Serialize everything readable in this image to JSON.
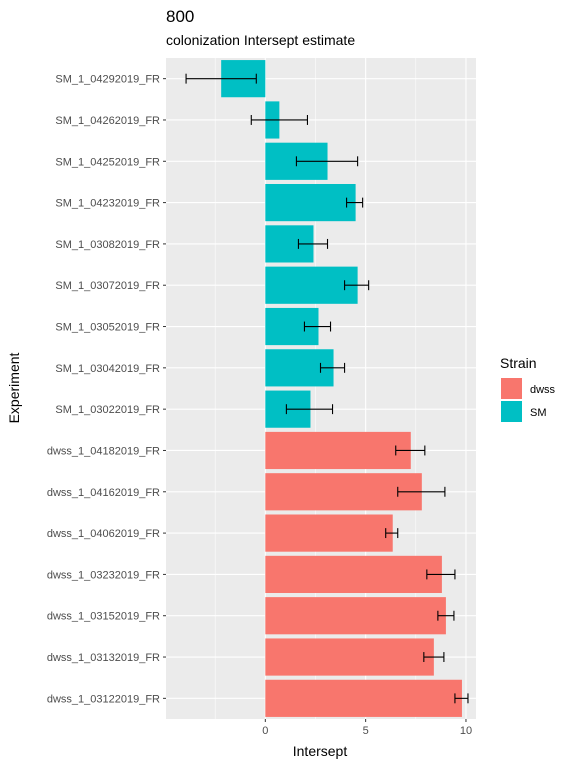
{
  "chart_data": {
    "type": "bar",
    "orientation": "horizontal",
    "title": "800",
    "subtitle": "colonization Intersept estimate",
    "xlabel": "Intersept",
    "ylabel": "Experiment",
    "xlim": [
      -4.95,
      10.5
    ],
    "x_ticks": [
      0,
      5,
      10
    ],
    "grid": true,
    "legend": {
      "title": "Strain",
      "position": "right",
      "entries": [
        "dwss",
        "SM"
      ]
    },
    "colors": {
      "dwss": "#F8766D",
      "SM": "#00BFC4",
      "panel": "#EBEBEB",
      "grid": "#FFFFFF"
    },
    "categories": [
      "SM_1_04292019_FR",
      "SM_1_04262019_FR",
      "SM_1_04252019_FR",
      "SM_1_04232019_FR",
      "SM_1_03082019_FR",
      "SM_1_03072019_FR",
      "SM_1_03052019_FR",
      "SM_1_03042019_FR",
      "SM_1_03022019_FR",
      "dwss_1_04182019_FR",
      "dwss_1_04162019_FR",
      "dwss_1_04062019_FR",
      "dwss_1_03232019_FR",
      "dwss_1_03152019_FR",
      "dwss_1_03132019_FR",
      "dwss_1_03122019_FR"
    ],
    "strain": [
      "SM",
      "SM",
      "SM",
      "SM",
      "SM",
      "SM",
      "SM",
      "SM",
      "SM",
      "dwss",
      "dwss",
      "dwss",
      "dwss",
      "dwss",
      "dwss",
      "dwss"
    ],
    "values": [
      -2.2,
      0.7,
      3.1,
      4.5,
      2.4,
      4.6,
      2.65,
      3.4,
      2.25,
      7.25,
      7.8,
      6.35,
      8.8,
      9.0,
      8.4,
      9.8
    ],
    "error_low": [
      -3.95,
      -0.7,
      1.55,
      4.05,
      1.65,
      3.95,
      1.95,
      2.75,
      1.05,
      6.5,
      6.6,
      6.0,
      8.05,
      8.6,
      7.9,
      9.45
    ],
    "error_high": [
      -0.45,
      2.1,
      4.6,
      4.85,
      3.1,
      5.15,
      3.25,
      3.95,
      3.35,
      7.95,
      8.95,
      6.6,
      9.45,
      9.4,
      8.9,
      10.1
    ]
  }
}
